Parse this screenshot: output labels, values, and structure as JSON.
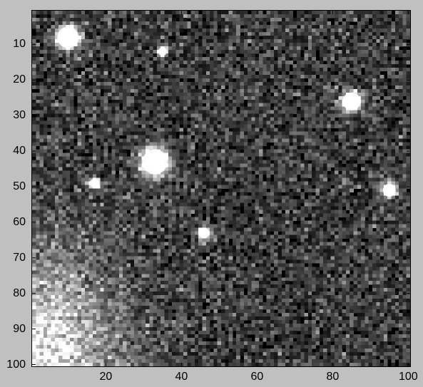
{
  "chart_data": {
    "type": "heatmap",
    "title": "",
    "xlabel": "",
    "ylabel": "",
    "colormap": "gray",
    "xlim": [
      0.5,
      100.5
    ],
    "ylim": [
      0.5,
      100.5
    ],
    "y_reversed": true,
    "x_ticks": [
      20,
      40,
      60,
      80,
      100
    ],
    "y_ticks": [
      10,
      20,
      30,
      40,
      50,
      60,
      70,
      80,
      90,
      100
    ],
    "x_tick_labels": [
      "20",
      "40",
      "60",
      "80",
      "100"
    ],
    "y_tick_labels": [
      "10",
      "20",
      "30",
      "40",
      "50",
      "60",
      "70",
      "80",
      "90",
      "100"
    ],
    "grid_size": [
      100,
      100
    ],
    "background_level": 0.12,
    "noise_level": 0.55,
    "bright_sources": [
      {
        "x": 10,
        "y": 8,
        "radius": 3.0,
        "peak": 1.0
      },
      {
        "x": 35,
        "y": 12,
        "radius": 1.2,
        "peak": 0.9
      },
      {
        "x": 85,
        "y": 26,
        "radius": 2.5,
        "peak": 1.0
      },
      {
        "x": 33,
        "y": 43,
        "radius": 3.5,
        "peak": 1.0
      },
      {
        "x": 17,
        "y": 49,
        "radius": 1.3,
        "peak": 0.85
      },
      {
        "x": 95,
        "y": 51,
        "radius": 1.8,
        "peak": 0.95
      },
      {
        "x": 46,
        "y": 63,
        "radius": 1.5,
        "peak": 0.95
      }
    ],
    "diffuse_glow": {
      "x": 0,
      "y": 100,
      "sigma_x": 22,
      "sigma_y": 30,
      "peak": 0.85
    }
  },
  "colors": {
    "figure_background": "#c0c0c0",
    "axes_border": "#000000",
    "tick_text": "#000000"
  }
}
